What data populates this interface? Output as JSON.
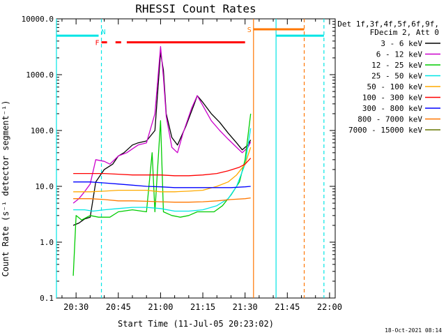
{
  "chart_data": {
    "type": "line",
    "title": "RHESSI Count Rates",
    "xlabel": "Start Time (11-Jul-05 20:23:02)",
    "ylabel": "Count Rate (s⁻¹ detector segment⁻¹)",
    "yscale": "log",
    "ylim": [
      0.1,
      10000
    ],
    "xlim": [
      "20:23:02",
      "22:02:00"
    ],
    "x_ticks": [
      "20:30",
      "20:45",
      "21:00",
      "21:15",
      "21:30",
      "21:45",
      "22:00"
    ],
    "y_ticks": [
      "0.1",
      "1.0",
      "10.0",
      "100.0",
      "1000.0",
      "10000.0"
    ],
    "legend_header": [
      "Det 1f,3f,4f,5f,6f,9f,",
      "FDecim 2, Att 0"
    ],
    "legend_placement": "right",
    "timestamp": "18-Oct-2021 08:14",
    "series": [
      {
        "name": "3 - 6 keV",
        "color": "#000000",
        "points": [
          [
            "20:29",
            2.0
          ],
          [
            "20:31",
            2.2
          ],
          [
            "20:33",
            2.6
          ],
          [
            "20:35",
            2.8
          ],
          [
            "20:37",
            12
          ],
          [
            "20:40",
            20
          ],
          [
            "20:43",
            25
          ],
          [
            "20:45",
            35
          ],
          [
            "20:47",
            40
          ],
          [
            "20:50",
            55
          ],
          [
            "20:52",
            60
          ],
          [
            "20:55",
            65
          ],
          [
            "20:58",
            100
          ],
          [
            "21:00",
            2500
          ],
          [
            "21:01",
            1200
          ],
          [
            "21:02",
            200
          ],
          [
            "21:04",
            75
          ],
          [
            "21:06",
            55
          ],
          [
            "21:09",
            120
          ],
          [
            "21:12",
            300
          ],
          [
            "21:13",
            420
          ],
          [
            "21:15",
            320
          ],
          [
            "21:18",
            200
          ],
          [
            "21:21",
            140
          ],
          [
            "21:24",
            90
          ],
          [
            "21:27",
            60
          ],
          [
            "21:29",
            45
          ],
          [
            "21:31",
            55
          ],
          [
            "21:32",
            68
          ]
        ]
      },
      {
        "name": "6 - 12 keV",
        "color": "#cc00cc",
        "points": [
          [
            "20:29",
            5
          ],
          [
            "20:31",
            6
          ],
          [
            "20:33",
            8
          ],
          [
            "20:35",
            11
          ],
          [
            "20:37",
            30
          ],
          [
            "20:40",
            28
          ],
          [
            "20:42",
            25
          ],
          [
            "20:45",
            35
          ],
          [
            "20:48",
            40
          ],
          [
            "20:52",
            55
          ],
          [
            "20:55",
            60
          ],
          [
            "20:58",
            200
          ],
          [
            "21:00",
            3200
          ],
          [
            "21:01",
            900
          ],
          [
            "21:02",
            180
          ],
          [
            "21:04",
            50
          ],
          [
            "21:06",
            40
          ],
          [
            "21:08",
            90
          ],
          [
            "21:11",
            250
          ],
          [
            "21:13",
            420
          ],
          [
            "21:15",
            280
          ],
          [
            "21:18",
            150
          ],
          [
            "21:21",
            100
          ],
          [
            "21:24",
            70
          ],
          [
            "21:27",
            50
          ],
          [
            "21:29",
            40
          ],
          [
            "21:31",
            50
          ],
          [
            "21:32",
            62
          ]
        ]
      },
      {
        "name": "12 - 25 keV",
        "color": "#00cc00",
        "points": [
          [
            "20:29",
            0.25
          ],
          [
            "20:30",
            3.0
          ],
          [
            "20:32",
            2.5
          ],
          [
            "20:35",
            3.0
          ],
          [
            "20:38",
            2.8
          ],
          [
            "20:42",
            2.8
          ],
          [
            "20:45",
            3.5
          ],
          [
            "20:50",
            3.8
          ],
          [
            "20:55",
            3.5
          ],
          [
            "20:57",
            40
          ],
          [
            "20:58",
            3.5
          ],
          [
            "21:00",
            150
          ],
          [
            "21:01",
            3.5
          ],
          [
            "21:04",
            3.0
          ],
          [
            "21:07",
            2.8
          ],
          [
            "21:10",
            3.0
          ],
          [
            "21:13",
            3.5
          ],
          [
            "21:16",
            3.5
          ],
          [
            "21:19",
            3.5
          ],
          [
            "21:22",
            4.5
          ],
          [
            "21:25",
            7
          ],
          [
            "21:28",
            12
          ],
          [
            "21:30",
            30
          ],
          [
            "21:32",
            200
          ]
        ]
      },
      {
        "name": "25 - 50 keV",
        "color": "#00e5e5",
        "points": [
          [
            "20:29",
            3.8
          ],
          [
            "20:33",
            3.8
          ],
          [
            "20:36",
            3.6
          ],
          [
            "20:40",
            3.8
          ],
          [
            "20:45",
            4.0
          ],
          [
            "20:50",
            4.2
          ],
          [
            "20:55",
            4.2
          ],
          [
            "21:00",
            4.0
          ],
          [
            "21:05",
            3.6
          ],
          [
            "21:10",
            3.6
          ],
          [
            "21:15",
            3.8
          ],
          [
            "21:20",
            4.5
          ],
          [
            "21:24",
            6
          ],
          [
            "21:27",
            10
          ],
          [
            "21:30",
            25
          ],
          [
            "21:32",
            110
          ]
        ]
      },
      {
        "name": "50 - 100 keV",
        "color": "#ffaa00",
        "points": [
          [
            "20:29",
            8
          ],
          [
            "20:35",
            8
          ],
          [
            "20:40",
            8.2
          ],
          [
            "20:45",
            8.5
          ],
          [
            "20:50",
            8.5
          ],
          [
            "20:55",
            8.5
          ],
          [
            "21:00",
            8.0
          ],
          [
            "21:05",
            8.0
          ],
          [
            "21:10",
            8.2
          ],
          [
            "21:15",
            8.5
          ],
          [
            "21:20",
            10
          ],
          [
            "21:24",
            12
          ],
          [
            "21:27",
            16
          ],
          [
            "21:30",
            25
          ],
          [
            "21:32",
            50
          ]
        ]
      },
      {
        "name": "100 - 300 keV",
        "color": "#ff0000",
        "points": [
          [
            "20:29",
            17
          ],
          [
            "20:35",
            17
          ],
          [
            "20:40",
            17
          ],
          [
            "20:45",
            16.5
          ],
          [
            "20:50",
            16
          ],
          [
            "20:55",
            16
          ],
          [
            "21:00",
            16
          ],
          [
            "21:05",
            15.5
          ],
          [
            "21:10",
            15.5
          ],
          [
            "21:15",
            16
          ],
          [
            "21:20",
            17
          ],
          [
            "21:24",
            19
          ],
          [
            "21:28",
            22
          ],
          [
            "21:30",
            25
          ],
          [
            "21:32",
            32
          ]
        ]
      },
      {
        "name": "300 - 800 keV",
        "color": "#0000ff",
        "points": [
          [
            "20:29",
            12
          ],
          [
            "20:35",
            12
          ],
          [
            "20:40",
            11.5
          ],
          [
            "20:45",
            11
          ],
          [
            "20:50",
            10.5
          ],
          [
            "20:55",
            10
          ],
          [
            "21:00",
            9.8
          ],
          [
            "21:05",
            9.5
          ],
          [
            "21:10",
            9.5
          ],
          [
            "21:15",
            9.5
          ],
          [
            "21:20",
            9.5
          ],
          [
            "21:25",
            9.5
          ],
          [
            "21:30",
            9.8
          ],
          [
            "21:32",
            10
          ]
        ]
      },
      {
        "name": "800 - 7000 keV",
        "color": "#ff7700",
        "points": [
          [
            "20:29",
            6.0
          ],
          [
            "20:35",
            6.0
          ],
          [
            "20:40",
            5.8
          ],
          [
            "20:45",
            5.5
          ],
          [
            "20:50",
            5.5
          ],
          [
            "20:55",
            5.4
          ],
          [
            "21:00",
            5.3
          ],
          [
            "21:05",
            5.2
          ],
          [
            "21:10",
            5.2
          ],
          [
            "21:15",
            5.3
          ],
          [
            "21:20",
            5.5
          ],
          [
            "21:25",
            5.8
          ],
          [
            "21:30",
            6.0
          ],
          [
            "21:32",
            6.2
          ]
        ]
      },
      {
        "name": "7000 - 15000 keV",
        "color": "#667700",
        "points": []
      }
    ],
    "flag_bars": [
      {
        "label": "",
        "color": "#00e5e5",
        "value": 5000,
        "from": "20:23:02",
        "to": "20:38"
      },
      {
        "label": "N",
        "color": "#00e5e5",
        "value": 5000,
        "from": "20:38",
        "to": "20:38"
      },
      {
        "label": "F",
        "color": "#ff0000",
        "value": 3800,
        "from": "20:39",
        "to": "20:41"
      },
      {
        "label": "",
        "color": "#ff0000",
        "value": 3800,
        "from": "20:44",
        "to": "20:46"
      },
      {
        "label": "",
        "color": "#ff0000",
        "value": 3800,
        "from": "20:48",
        "to": "21:30"
      },
      {
        "label": "S",
        "color": "#ff7700",
        "value": 6500,
        "from": "21:33",
        "to": "21:51"
      },
      {
        "label": "",
        "color": "#00e5e5",
        "value": 5000,
        "from": "21:41",
        "to": "21:58"
      }
    ],
    "markers": [
      {
        "time": "20:23:02",
        "color": "#00e5e5",
        "style": "solid"
      },
      {
        "time": "20:39",
        "color": "#00e5e5",
        "style": "dashed"
      },
      {
        "time": "21:33",
        "color": "#ff7700",
        "style": "solid"
      },
      {
        "time": "21:41",
        "color": "#00e5e5",
        "style": "solid"
      },
      {
        "time": "21:51",
        "color": "#ff7700",
        "style": "dashed"
      },
      {
        "time": "21:58",
        "color": "#00e5e5",
        "style": "dashed"
      }
    ]
  }
}
